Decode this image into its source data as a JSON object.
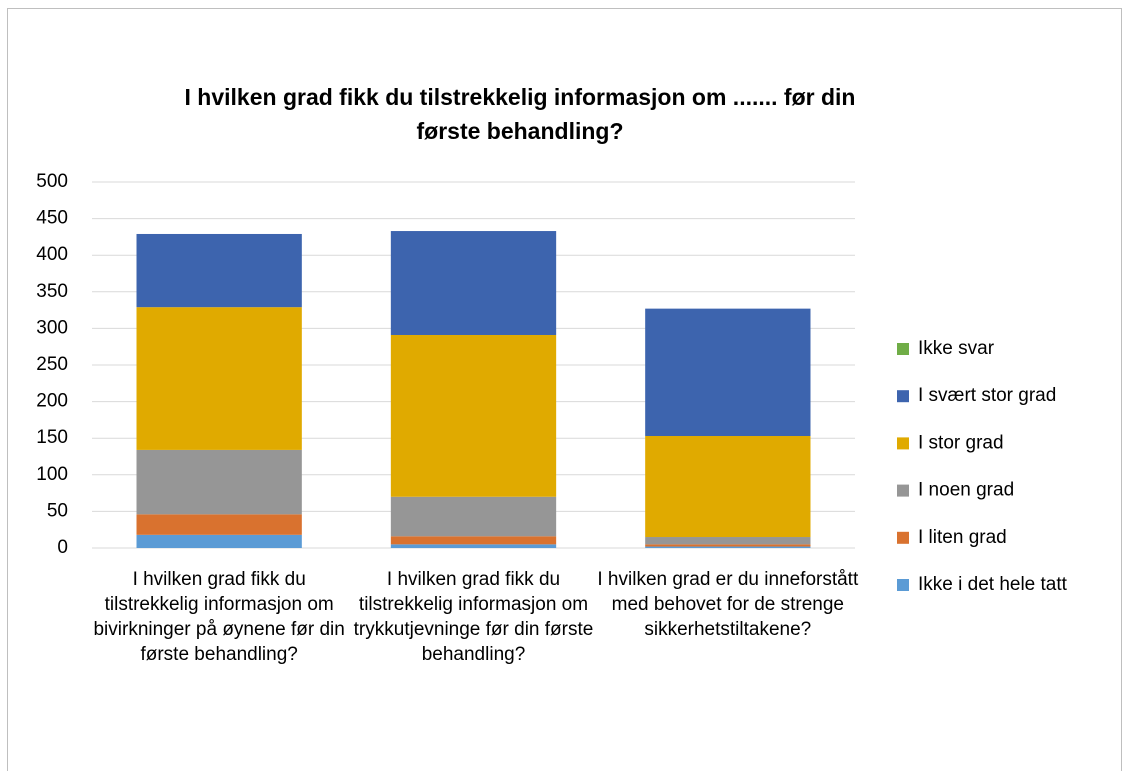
{
  "chart_data": {
    "type": "stacked_bar",
    "title": "I hvilken grad fikk du tilstrekkelig informasjon om ....... før din første behandling?",
    "categories": [
      "I hvilken grad fikk du tilstrekkelig informasjon om bivirkninger på øynene før din første behandling?",
      "I hvilken grad fikk du tilstrekkelig informasjon om trykkutjevninge før din første behandling?",
      "I hvilken grad er du inneforstått med behovet for de strenge sikkerhetstiltakene?"
    ],
    "series": [
      {
        "name": "Ikke i det hele tatt",
        "color": "#5b9bd5",
        "values": [
          18,
          5,
          2
        ]
      },
      {
        "name": "I liten grad",
        "color": "#d9722f",
        "values": [
          28,
          11,
          3
        ]
      },
      {
        "name": "I noen grad",
        "color": "#969696",
        "values": [
          88,
          54,
          10
        ]
      },
      {
        "name": "I stor grad",
        "color": "#e0aa00",
        "values": [
          195,
          221,
          138
        ]
      },
      {
        "name": "I svært stor grad",
        "color": "#3d64ae",
        "values": [
          100,
          142,
          174
        ]
      },
      {
        "name": "Ikke svar",
        "color": "#70ad47",
        "values": [
          0,
          0,
          0
        ]
      }
    ],
    "ylim": [
      0,
      500
    ],
    "yticks": [
      0,
      50,
      100,
      150,
      200,
      250,
      300,
      350,
      400,
      450,
      500
    ],
    "grid": true,
    "legend": "right"
  }
}
